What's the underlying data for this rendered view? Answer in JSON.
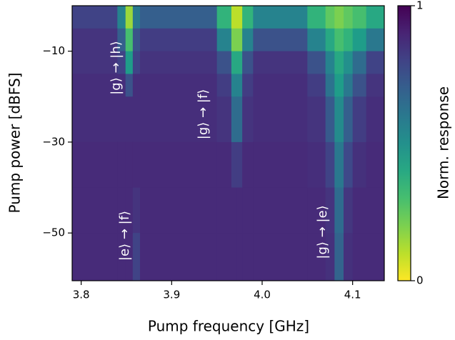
{
  "chart_data": {
    "type": "heatmap",
    "xlabel": "Pump frequency [GHz]",
    "ylabel": "Pump power [dBFS]",
    "colorbar_label": "Norm. response",
    "colormap": "viridis_r",
    "x_edges": [
      3.79,
      3.84,
      3.849,
      3.857,
      3.865,
      3.95,
      3.966,
      3.972,
      3.978,
      3.99,
      4.05,
      4.07,
      4.08,
      4.085,
      4.09,
      4.1,
      4.115,
      4.135
    ],
    "y_edges": [
      0,
      -5,
      -10,
      -15,
      -20,
      -30,
      -40,
      -50,
      -60.5
    ],
    "z": [
      [
        0.8,
        0.55,
        0.15,
        0.6,
        0.7,
        0.35,
        0.1,
        0.1,
        0.35,
        0.55,
        0.35,
        0.25,
        0.2,
        0.2,
        0.25,
        0.3,
        0.4
      ],
      [
        0.85,
        0.7,
        0.3,
        0.75,
        0.82,
        0.55,
        0.2,
        0.2,
        0.55,
        0.75,
        0.55,
        0.4,
        0.3,
        0.3,
        0.35,
        0.45,
        0.6
      ],
      [
        0.85,
        0.8,
        0.45,
        0.8,
        0.85,
        0.75,
        0.4,
        0.4,
        0.75,
        0.85,
        0.75,
        0.55,
        0.4,
        0.4,
        0.5,
        0.65,
        0.8
      ],
      [
        0.87,
        0.87,
        0.75,
        0.87,
        0.87,
        0.82,
        0.55,
        0.55,
        0.82,
        0.87,
        0.82,
        0.62,
        0.45,
        0.45,
        0.6,
        0.75,
        0.85
      ],
      [
        0.87,
        0.87,
        0.87,
        0.87,
        0.87,
        0.85,
        0.65,
        0.65,
        0.85,
        0.87,
        0.85,
        0.72,
        0.52,
        0.52,
        0.7,
        0.82,
        0.87
      ],
      [
        0.88,
        0.88,
        0.88,
        0.88,
        0.88,
        0.88,
        0.82,
        0.82,
        0.88,
        0.88,
        0.87,
        0.8,
        0.6,
        0.6,
        0.78,
        0.86,
        0.88
      ],
      [
        0.88,
        0.88,
        0.88,
        0.85,
        0.88,
        0.88,
        0.88,
        0.88,
        0.88,
        0.88,
        0.88,
        0.85,
        0.65,
        0.65,
        0.84,
        0.88,
        0.88
      ],
      [
        0.88,
        0.88,
        0.88,
        0.8,
        0.88,
        0.88,
        0.88,
        0.88,
        0.88,
        0.88,
        0.88,
        0.86,
        0.68,
        0.68,
        0.86,
        0.88,
        0.88
      ]
    ],
    "xlim": [
      3.79,
      4.135
    ],
    "ylim": [
      -60.5,
      0
    ],
    "xticks": [
      3.8,
      3.9,
      {
        "value": 4,
        "label": "4.0"
      },
      4.1
    ],
    "yticks": [
      {
        "value": -10,
        "label": "−10"
      },
      {
        "value": -30,
        "label": "−30"
      },
      {
        "value": -50,
        "label": "−50"
      }
    ],
    "clim": [
      0,
      1
    ],
    "cticks": [
      0,
      1
    ],
    "annotations": [
      "|g⟩ → |h⟩",
      "|g⟩ → |f⟩",
      "|e⟩ → |f⟩",
      "|g⟩ → |e⟩"
    ]
  }
}
